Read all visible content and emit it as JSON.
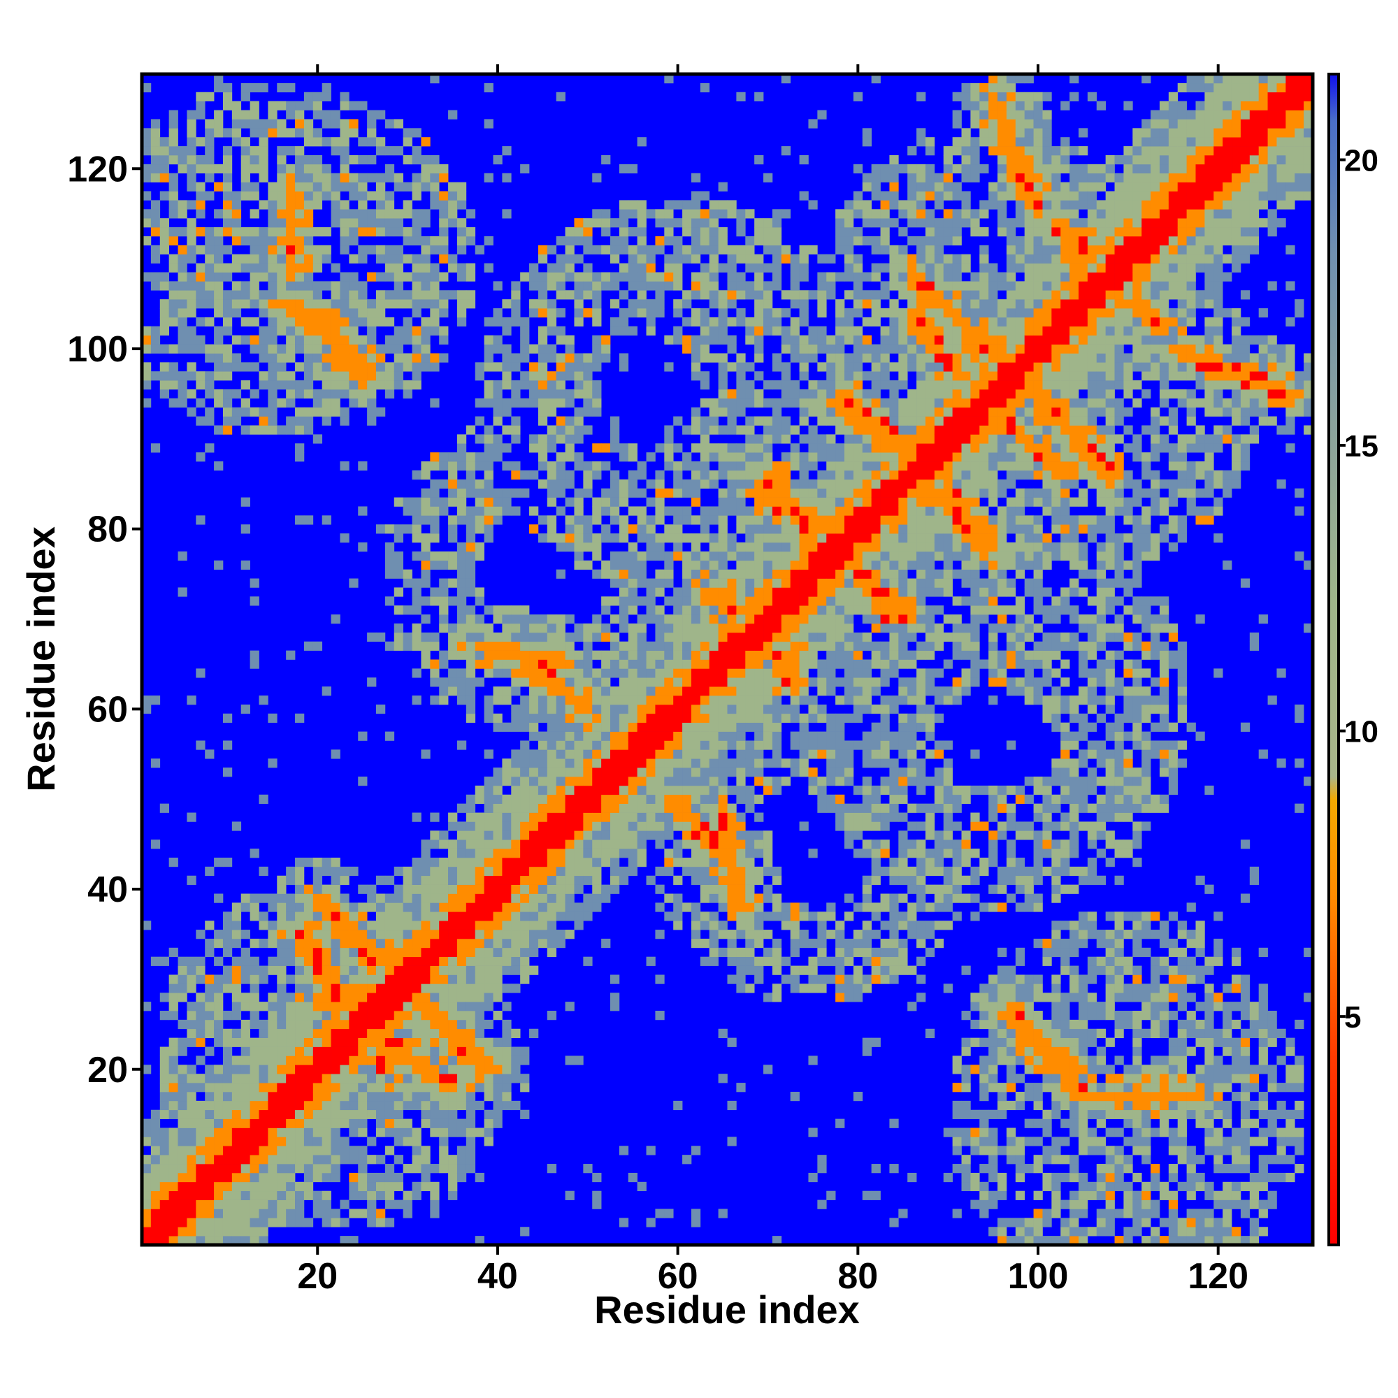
{
  "chart_data": {
    "type": "heatmap",
    "xlabel": "Residue index",
    "ylabel": "Residue index",
    "xlim": [
      1,
      130
    ],
    "ylim": [
      1,
      130
    ],
    "x_ticks": [
      20,
      40,
      60,
      80,
      100,
      120
    ],
    "y_ticks": [
      20,
      40,
      60,
      80,
      100,
      120
    ],
    "colorbar": {
      "range": [
        1,
        21.5
      ],
      "ticks": [
        5,
        10,
        15,
        20
      ],
      "colors": {
        "near": "#ff0000",
        "close": "#ff8c00",
        "mid": "#9fb58a",
        "far": "#6f8fb0",
        "background": "#0000ff"
      }
    },
    "notes": "Symmetric residue contact-distance map; red diagonal, orange contact bands, blue background beyond cutoff",
    "contact_bands": [
      {
        "type": "parallel",
        "a": [
          18,
          35
        ],
        "b": [
          28,
          20
        ]
      },
      {
        "type": "parallel",
        "a": [
          20,
          39
        ],
        "b": [
          36,
          23
        ]
      },
      {
        "type": "parallel",
        "a": [
          19,
          104
        ],
        "b": [
          26,
          97
        ]
      },
      {
        "type": "parallel",
        "a": [
          65,
          73
        ],
        "b": [
          73,
          63
        ]
      },
      {
        "type": "parallel",
        "a": [
          70,
          86
        ],
        "b": [
          84,
          70
        ]
      },
      {
        "type": "parallel",
        "a": [
          78,
          94
        ],
        "b": [
          90,
          83
        ]
      },
      {
        "type": "parallel",
        "a": [
          86,
          103
        ],
        "b": [
          96,
          92
        ]
      },
      {
        "type": "parallel",
        "a": [
          99,
          96
        ],
        "b": [
          108,
          86
        ]
      },
      {
        "type": "parallel",
        "a": [
          85,
          90
        ],
        "b": [
          95,
          78
        ]
      },
      {
        "type": "parallel",
        "a": [
          97,
          26
        ],
        "b": [
          105,
          17
        ]
      },
      {
        "type": "parallel",
        "a": [
          106,
          110
        ],
        "b": [
          114,
          102
        ]
      },
      {
        "type": "parallel",
        "a": [
          108,
          17
        ],
        "b": [
          118,
          17
        ]
      },
      {
        "type": "parallel",
        "a": [
          41,
          67
        ],
        "b": [
          50,
          60
        ]
      },
      {
        "type": "parallel",
        "a": [
          65,
          48
        ],
        "b": [
          67,
          38
        ]
      },
      {
        "type": "parallel",
        "a": [
          95,
          128
        ],
        "b": [
          100,
          115
        ]
      }
    ],
    "domains": [
      {
        "cx": 22,
        "cy": 22,
        "r": 20
      },
      {
        "cx": 45,
        "cy": 75,
        "r": 18
      },
      {
        "cx": 60,
        "cy": 95,
        "r": 22
      },
      {
        "cx": 95,
        "cy": 55,
        "r": 18
      },
      {
        "cx": 110,
        "cy": 20,
        "r": 18
      },
      {
        "cx": 105,
        "cy": 95,
        "r": 20
      },
      {
        "cx": 15,
        "cy": 110,
        "r": 20
      },
      {
        "cx": 75,
        "cy": 70,
        "r": 16
      }
    ]
  }
}
